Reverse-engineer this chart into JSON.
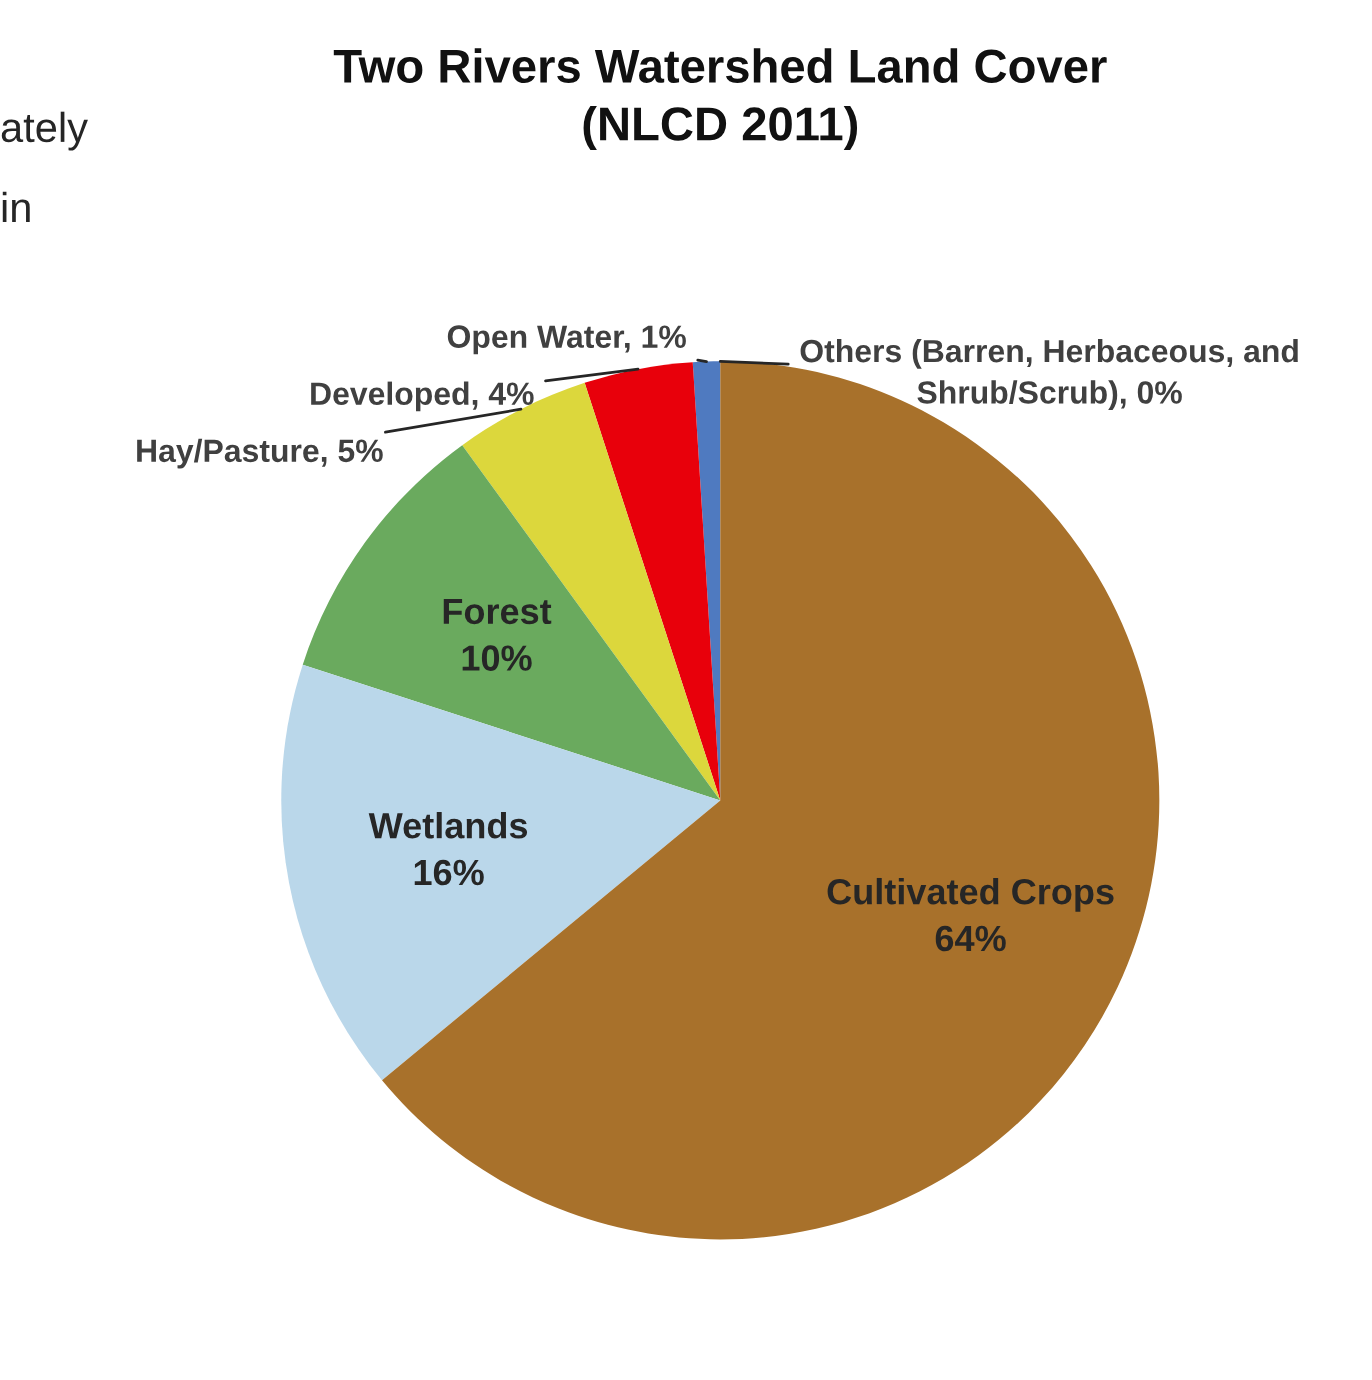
{
  "chart_data": {
    "type": "pie",
    "title": "Two Rivers Watershed Land Cover\n(NLCD 2011)",
    "categories": [
      "Others (Barren, Herbaceous, and Shrub/Scrub)",
      "Open Water",
      "Developed",
      "Hay/Pasture",
      "Forest",
      "Wetlands",
      "Cultivated Crops"
    ],
    "values": [
      0,
      1,
      4,
      5,
      10,
      16,
      64
    ],
    "value_labels": [
      "0%",
      "1%",
      "4%",
      "5%",
      "10%",
      "16%",
      "64%"
    ],
    "colors": [
      "#b0aba4",
      "#4f7ac0",
      "#e8000b",
      "#dcd73c",
      "#6aaa5e",
      "#bad7ea",
      "#a8712b"
    ],
    "annotations": [
      "ately",
      "in"
    ]
  }
}
